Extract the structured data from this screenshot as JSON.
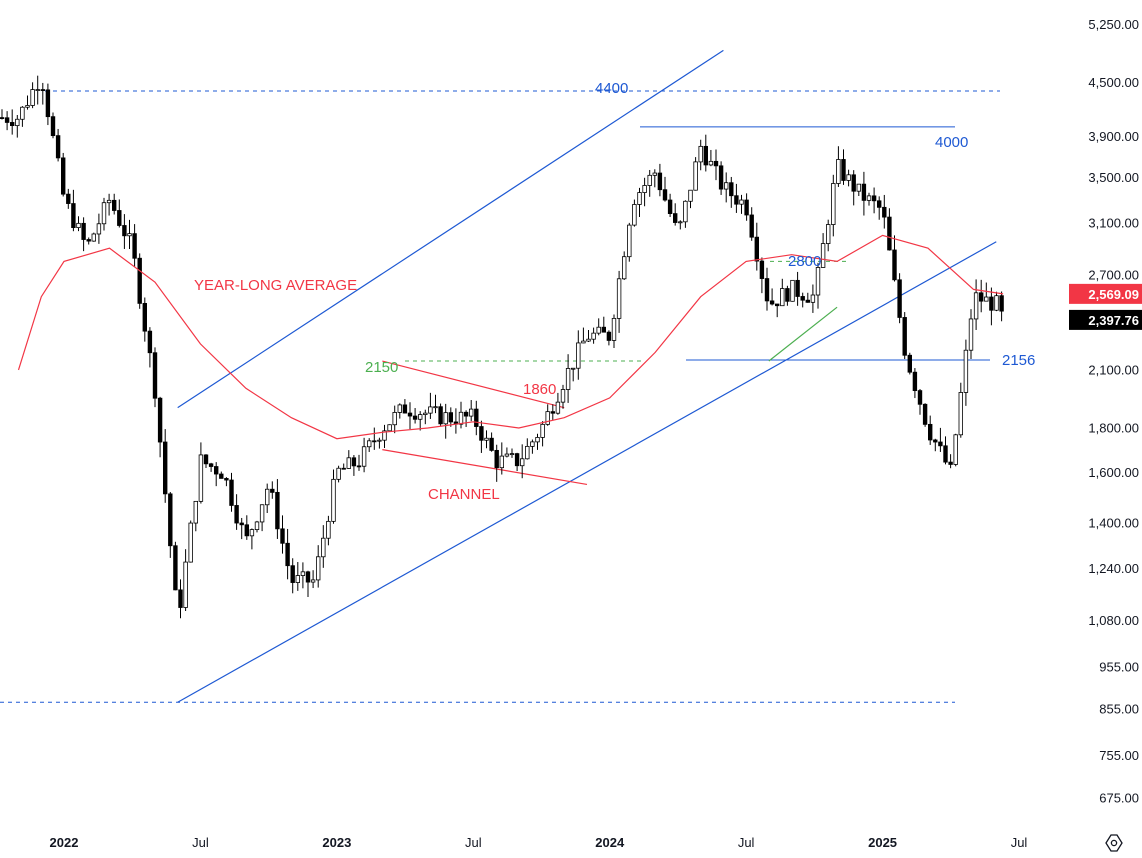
{
  "chart_data": {
    "type": "candlestick",
    "scale": "log",
    "ylim": [
      620,
      5600
    ],
    "y_ticks": [
      "5,250.00",
      "4,500.00",
      "3,900.00",
      "3,500.00",
      "3,100.00",
      "2,700.00",
      "2,100.00",
      "1,800.00",
      "1,600.00",
      "1,400.00",
      "1,240.00",
      "1,080.00",
      "955.00",
      "855.00",
      "755.00",
      "675.00"
    ],
    "x_ticks": [
      {
        "label": "2022",
        "bold": true,
        "date": "2022-01"
      },
      {
        "label": "Jul",
        "bold": false,
        "date": "2022-07"
      },
      {
        "label": "2023",
        "bold": true,
        "date": "2023-01"
      },
      {
        "label": "Jul",
        "bold": false,
        "date": "2023-07"
      },
      {
        "label": "2024",
        "bold": true,
        "date": "2024-01"
      },
      {
        "label": "Jul",
        "bold": false,
        "date": "2024-07"
      },
      {
        "label": "2025",
        "bold": true,
        "date": "2025-01"
      },
      {
        "label": "Jul",
        "bold": false,
        "date": "2025-07"
      }
    ],
    "price_labels": [
      {
        "text": "2,569.09",
        "value": 2569.09,
        "color": "#f23645"
      },
      {
        "text": "2,397.76",
        "value": 2397.76,
        "color": "#000000"
      }
    ],
    "price_points": [
      [
        "2021-11",
        4100
      ],
      [
        "2021-12",
        4600
      ],
      [
        "2022-01",
        3300
      ],
      [
        "2022-02",
        2900
      ],
      [
        "2022-03",
        3300
      ],
      [
        "2022-04",
        2900
      ],
      [
        "2022-05",
        2000
      ],
      [
        "2022-06",
        1080
      ],
      [
        "2022-07",
        1650
      ],
      [
        "2022-08",
        1600
      ],
      [
        "2022-09",
        1330
      ],
      [
        "2022-10",
        1550
      ],
      [
        "2022-11",
        1200
      ],
      [
        "2022-12",
        1200
      ],
      [
        "2023-01",
        1600
      ],
      [
        "2023-02",
        1650
      ],
      [
        "2023-03",
        1800
      ],
      [
        "2023-04",
        1900
      ],
      [
        "2023-05",
        1870
      ],
      [
        "2023-06",
        1850
      ],
      [
        "2023-07",
        1850
      ],
      [
        "2023-08",
        1650
      ],
      [
        "2023-09",
        1650
      ],
      [
        "2023-10",
        1800
      ],
      [
        "2023-11",
        2050
      ],
      [
        "2023-12",
        2300
      ],
      [
        "2024-01",
        2300
      ],
      [
        "2024-02",
        3300
      ],
      [
        "2024-03",
        3550
      ],
      [
        "2024-04",
        3000
      ],
      [
        "2024-05",
        3800
      ],
      [
        "2024-06",
        3400
      ],
      [
        "2024-07",
        3250
      ],
      [
        "2024-08",
        2500
      ],
      [
        "2024-09",
        2600
      ],
      [
        "2024-10",
        2550
      ],
      [
        "2024-11",
        3600
      ],
      [
        "2024-12",
        3350
      ],
      [
        "2025-01",
        3200
      ],
      [
        "2025-02",
        2200
      ],
      [
        "2025-03",
        1800
      ],
      [
        "2025-04",
        1600
      ],
      [
        "2025-05",
        2550
      ],
      [
        "2025-06",
        2500
      ],
      [
        "2025-06-10",
        2397.76
      ]
    ],
    "series": [
      {
        "name": "YEAR-LONG AVERAGE",
        "type": "line",
        "color": "#f23645",
        "points": [
          [
            "2021-11",
            2100
          ],
          [
            "2021-12",
            2550
          ],
          [
            "2022-01",
            2800
          ],
          [
            "2022-03",
            2900
          ],
          [
            "2022-05",
            2650
          ],
          [
            "2022-07",
            2250
          ],
          [
            "2022-09",
            2000
          ],
          [
            "2022-11",
            1850
          ],
          [
            "2023-01",
            1750
          ],
          [
            "2023-03",
            1780
          ],
          [
            "2023-05",
            1800
          ],
          [
            "2023-07",
            1830
          ],
          [
            "2023-09",
            1800
          ],
          [
            "2023-11",
            1850
          ],
          [
            "2024-01",
            1950
          ],
          [
            "2024-03",
            2200
          ],
          [
            "2024-05",
            2550
          ],
          [
            "2024-07",
            2800
          ],
          [
            "2024-09",
            2850
          ],
          [
            "2024-11",
            2800
          ],
          [
            "2025-01",
            3000
          ],
          [
            "2025-03",
            2900
          ],
          [
            "2025-05",
            2600
          ],
          [
            "2025-06-10",
            2569.09
          ]
        ]
      }
    ],
    "annotations": [
      {
        "text": "4400",
        "color": "#1e59d3",
        "value": 4400
      },
      {
        "text": "4000",
        "color": "#1e59d3",
        "value": 4000
      },
      {
        "text": "2800",
        "color": "#1e59d3",
        "value": 2800
      },
      {
        "text": "2156",
        "color": "#1e59d3",
        "value": 2156
      },
      {
        "text": "2150",
        "color": "#4caf50",
        "value": 2150
      },
      {
        "text": "1860",
        "color": "#f23645",
        "value": 1860
      },
      {
        "text": "YEAR-LONG AVERAGE",
        "color": "#f23645"
      },
      {
        "text": "CHANNEL",
        "color": "#f23645"
      }
    ],
    "horizontal_levels": [
      {
        "value": 4400,
        "style": "dashed",
        "color": "#1e59d3"
      },
      {
        "value": 870,
        "style": "dashed",
        "color": "#1e59d3"
      },
      {
        "value": 4000,
        "style": "solid",
        "color": "#1e59d3"
      },
      {
        "value": 2156,
        "style": "solid",
        "color": "#1e59d3"
      },
      {
        "value": 2150,
        "style": "dashed",
        "color": "#4caf50"
      },
      {
        "value": 2800,
        "style": "dashed",
        "color": "#4caf50"
      }
    ],
    "trendlines": [
      {
        "name": "rising channel upper",
        "color": "#1e59d3",
        "from": [
          "2022-06",
          1900
        ],
        "to": [
          "2024-06",
          4900
        ]
      },
      {
        "name": "rising channel lower",
        "color": "#1e59d3",
        "from": [
          "2022-06",
          870
        ],
        "to": [
          "2025-06",
          2950
        ]
      },
      {
        "name": "falling channel upper",
        "color": "#f23645",
        "from": [
          "2023-03",
          2150
        ],
        "to": [
          "2023-11",
          1900
        ]
      },
      {
        "name": "falling channel lower",
        "color": "#f23645",
        "from": [
          "2023-03",
          1700
        ],
        "to": [
          "2023-12",
          1550
        ]
      },
      {
        "name": "minor rising line",
        "color": "#4caf50",
        "from": [
          "2024-08",
          2150
        ],
        "to": [
          "2024-11",
          2480
        ]
      }
    ],
    "grid": false,
    "legend": "none"
  },
  "icons": {
    "settings": "settings-gear-icon"
  }
}
